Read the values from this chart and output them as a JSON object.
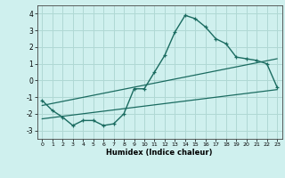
{
  "xlabel": "Humidex (Indice chaleur)",
  "background_color": "#cff0ee",
  "grid_color": "#b0d8d4",
  "line_color": "#1a6b60",
  "xlim": [
    -0.5,
    23.5
  ],
  "ylim": [
    -3.5,
    4.5
  ],
  "xticks": [
    0,
    1,
    2,
    3,
    4,
    5,
    6,
    7,
    8,
    9,
    10,
    11,
    12,
    13,
    14,
    15,
    16,
    17,
    18,
    19,
    20,
    21,
    22,
    23
  ],
  "yticks": [
    -3,
    -2,
    -1,
    0,
    1,
    2,
    3,
    4
  ],
  "main_x": [
    0,
    1,
    2,
    3,
    4,
    5,
    6,
    7,
    8,
    9,
    10,
    11,
    12,
    13,
    14,
    15,
    16,
    17,
    18,
    19,
    20,
    21,
    22,
    23
  ],
  "main_y": [
    -1.2,
    -1.8,
    -2.2,
    -2.7,
    -2.4,
    -2.4,
    -2.7,
    -2.6,
    -2.0,
    -0.5,
    -0.5,
    0.5,
    1.5,
    2.9,
    3.9,
    3.7,
    3.2,
    2.5,
    2.2,
    1.4,
    1.3,
    1.2,
    1.0,
    -0.4
  ],
  "regline1_x": [
    0,
    23
  ],
  "regline1_y": [
    -1.5,
    1.3
  ],
  "regline2_x": [
    0,
    23
  ],
  "regline2_y": [
    -2.3,
    -0.55
  ]
}
